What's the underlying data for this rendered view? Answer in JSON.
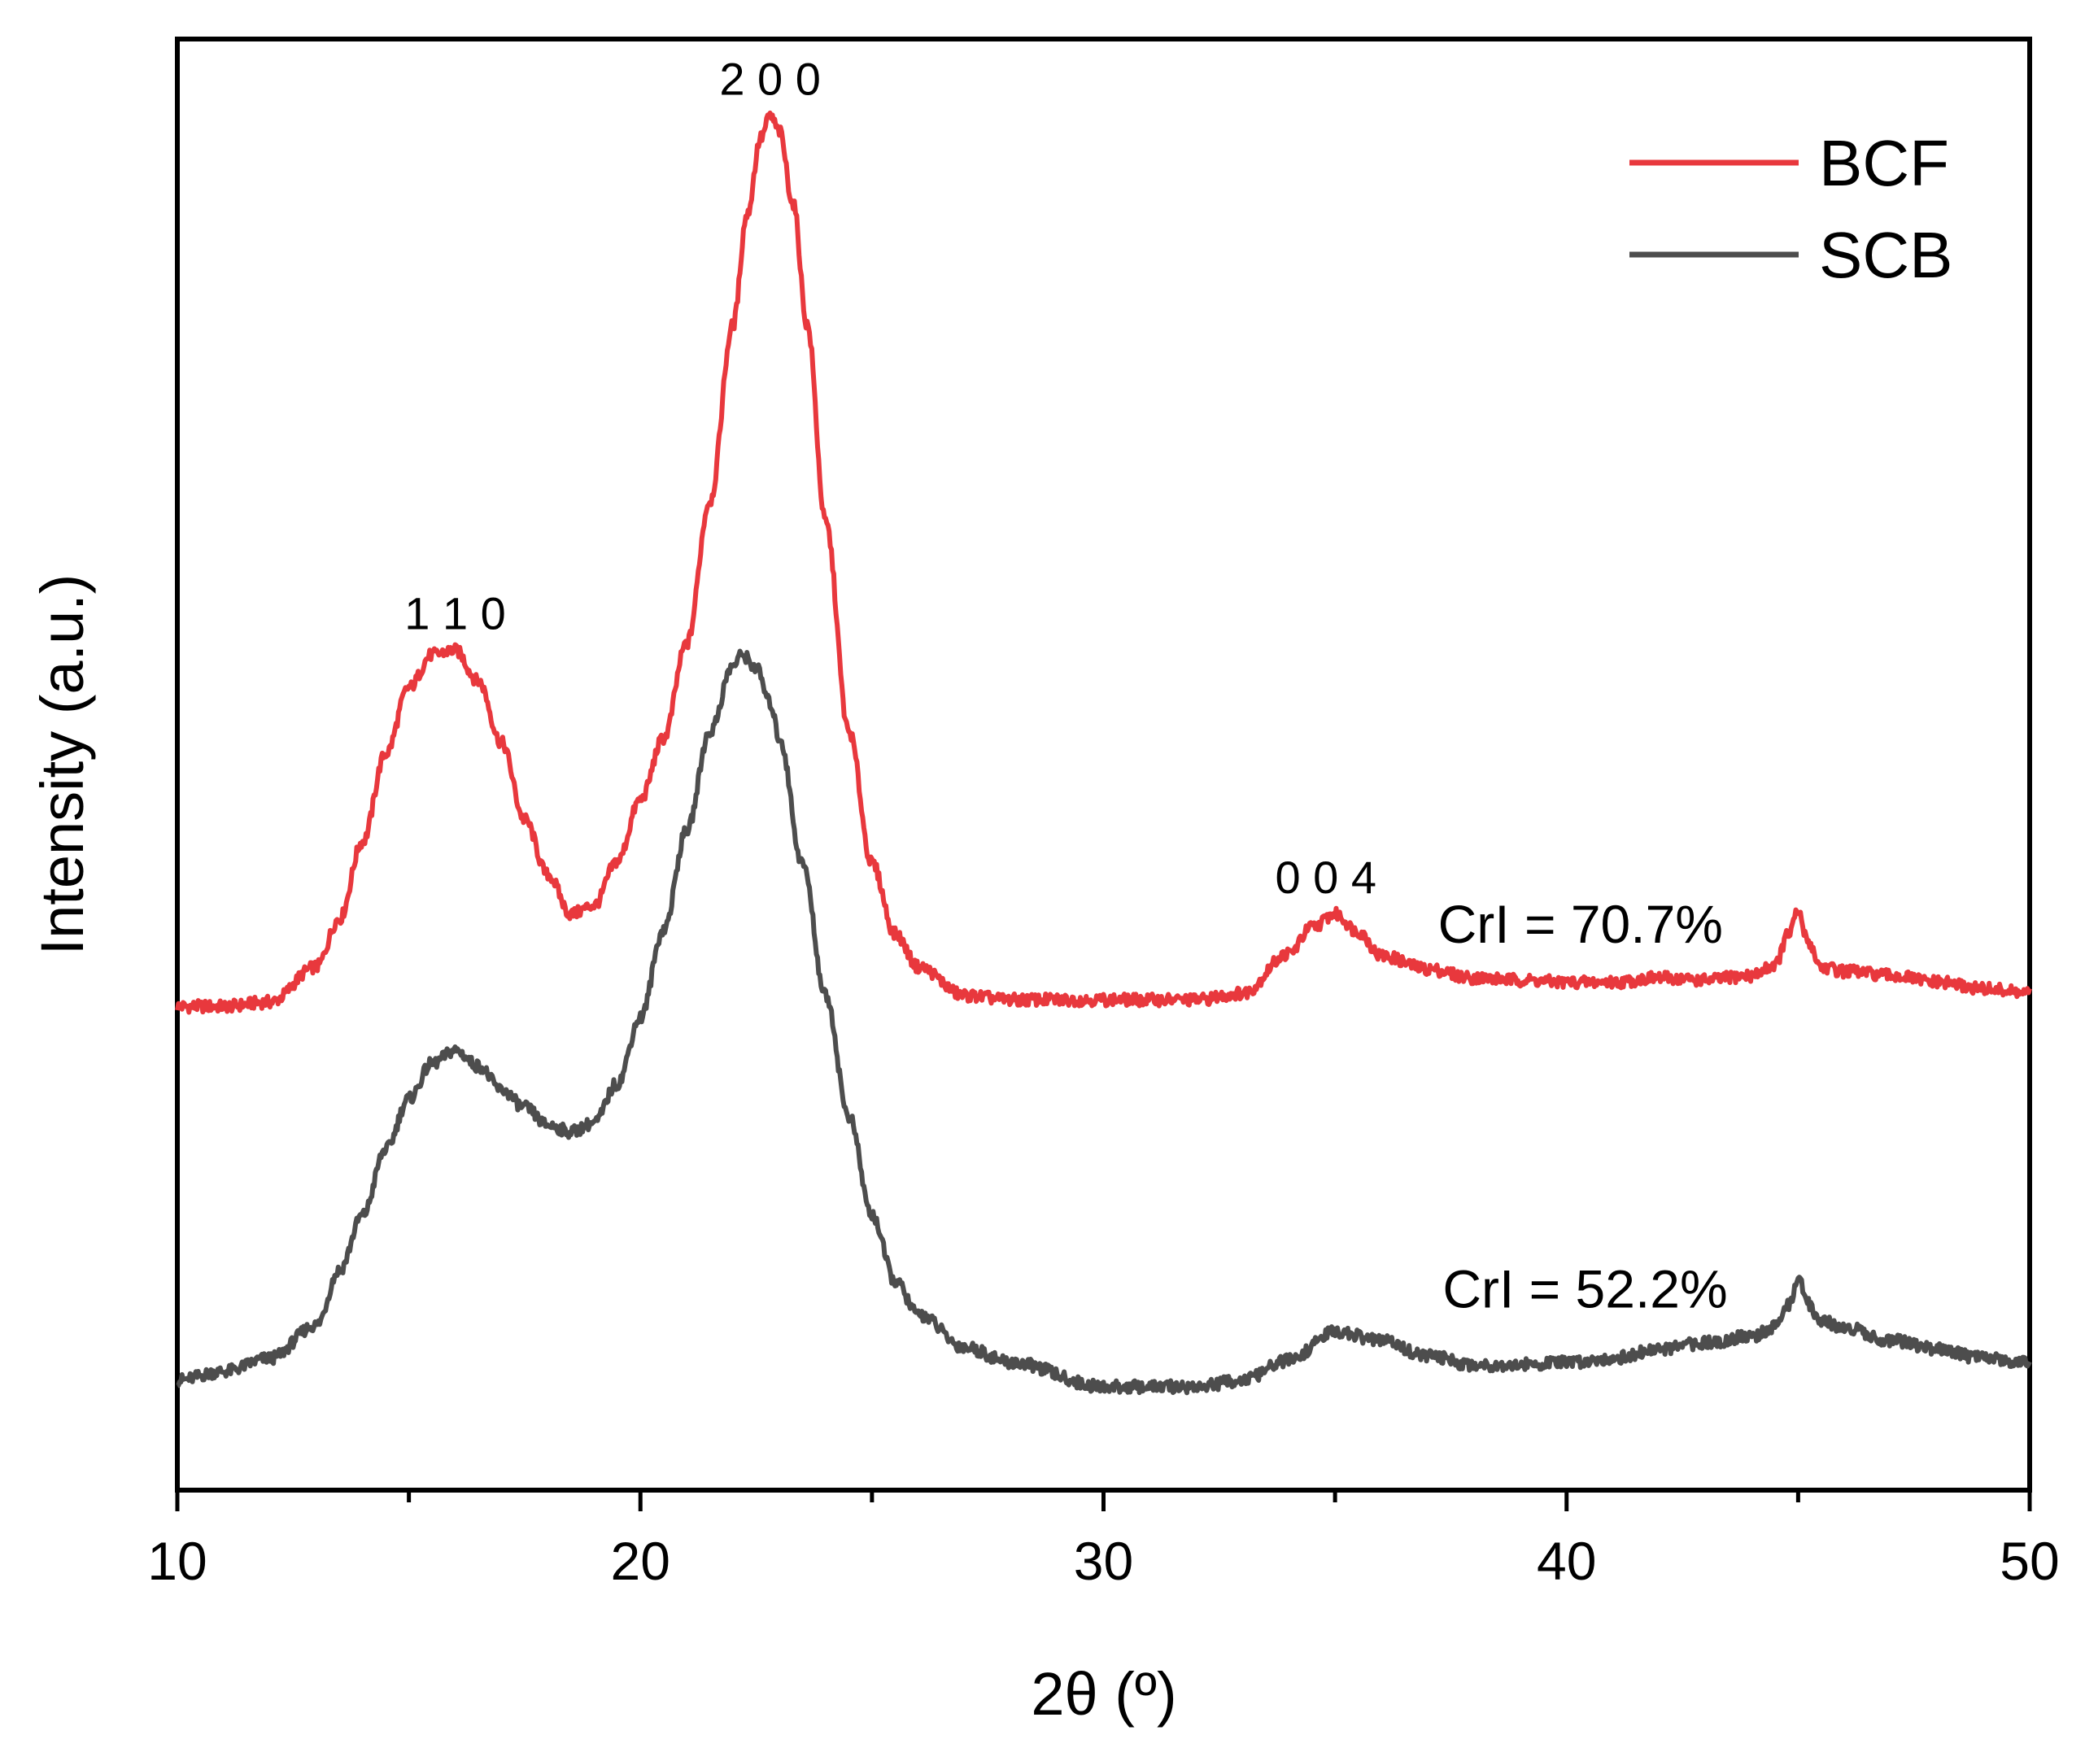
{
  "chart_data": {
    "type": "line",
    "xlabel": "2θ (º)",
    "ylabel": "Intensity (a.u.)",
    "xlim": [
      10,
      50
    ],
    "x_ticks": [
      "10",
      "20",
      "30",
      "40",
      "50"
    ],
    "y_ticks_shown": false,
    "grid": false,
    "legend_position": "top-right",
    "series": [
      {
        "name": "BCF",
        "color": "#e8383d",
        "x": [
          10,
          11,
          12,
          13,
          13.5,
          14,
          14.5,
          15,
          15.5,
          16,
          16.5,
          17,
          17.5,
          18,
          18.5,
          19,
          19.5,
          20,
          20.5,
          21,
          21.5,
          22,
          22.3,
          22.6,
          22.8,
          23,
          23.3,
          23.6,
          24,
          24.5,
          25,
          25.5,
          26,
          27,
          28,
          30,
          32,
          33,
          34,
          34.5,
          35,
          35.5,
          36,
          37,
          38,
          39,
          40,
          41,
          42,
          43,
          44,
          44.5,
          44.8,
          45,
          45.2,
          45.5,
          46,
          47,
          48,
          49,
          50
        ],
        "y": [
          2.0,
          2.0,
          2.2,
          3.8,
          6.0,
          9.5,
          13.5,
          16.5,
          18.0,
          18.2,
          16.8,
          14.0,
          10.5,
          8.0,
          6.2,
          6.6,
          8.6,
          11.4,
          14.2,
          18.5,
          25.0,
          33.0,
          38.0,
          41.5,
          42.5,
          41.8,
          38.5,
          33.0,
          24.0,
          14.5,
          8.5,
          5.3,
          3.8,
          2.5,
          2.3,
          2.3,
          2.3,
          2.6,
          4.4,
          5.6,
          6.2,
          5.4,
          4.3,
          3.7,
          3.3,
          3.2,
          3.1,
          3.1,
          3.3,
          3.2,
          3.4,
          3.9,
          5.3,
          6.3,
          5.0,
          3.8,
          3.6,
          3.4,
          3.1,
          2.8,
          2.6
        ]
      },
      {
        "name": "SCB",
        "color": "#4d4d4d",
        "x": [
          10,
          11,
          12,
          13,
          13.5,
          14,
          14.5,
          15,
          15.5,
          16,
          16.5,
          17,
          17.5,
          18,
          18.5,
          19,
          19.5,
          20,
          20.5,
          21,
          21.5,
          22,
          22.2,
          22.5,
          22.8,
          23,
          23.5,
          24,
          24.5,
          25,
          25.5,
          26,
          27,
          28,
          30,
          32,
          33,
          34,
          35,
          36,
          37,
          38,
          39,
          40,
          41,
          42,
          43,
          44,
          44.5,
          44.8,
          45,
          45.2,
          45.5,
          46,
          47,
          48,
          49,
          50
        ],
        "y": [
          -15.0,
          -14.6,
          -14.0,
          -12.5,
          -10.0,
          -7.5,
          -4.5,
          -2.2,
          -0.6,
          0.0,
          -0.7,
          -1.8,
          -2.6,
          -3.4,
          -3.7,
          -3.3,
          -1.5,
          1.5,
          5.5,
          10.0,
          14.5,
          17.5,
          18.0,
          17.4,
          15.8,
          14.2,
          8.5,
          2.5,
          -3.0,
          -7.5,
          -10.5,
          -12.0,
          -13.5,
          -14.2,
          -15.3,
          -15.3,
          -15.0,
          -14.1,
          -12.8,
          -13.2,
          -13.9,
          -14.3,
          -14.3,
          -14.2,
          -14.0,
          -13.6,
          -13.3,
          -13.0,
          -12.6,
          -11.6,
          -10.3,
          -11.5,
          -12.3,
          -12.6,
          -13.2,
          -13.6,
          -14.0,
          -14.2
        ]
      }
    ],
    "peak_labels": [
      {
        "text": "1 1 0",
        "x": 16.0,
        "y": 18.2
      },
      {
        "text": "2 0 0",
        "x": 22.8,
        "y": 42.5
      },
      {
        "text": "0 0 4",
        "x": 34.8,
        "y": 6.2
      }
    ],
    "annotations": [
      {
        "text": "CrI = 70.7%",
        "x": 40.3,
        "y": 4.9
      },
      {
        "text": "CrI = 52.2%",
        "x": 40.4,
        "y": -11.7
      }
    ],
    "ylim": [
      -20,
      46
    ]
  }
}
